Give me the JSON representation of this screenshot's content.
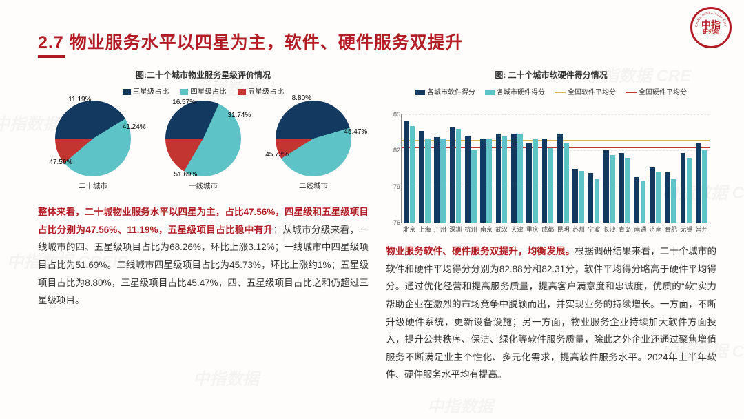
{
  "title": "2.7 物业服务水平以四星为主，软件、硬件服务双提升",
  "logo": {
    "center_text": "中指",
    "sub_text": "研究院",
    "arc_top": "CHINA INDEX ACADEMY",
    "circle_color": "#b31c24"
  },
  "watermarks": [
    "中指数据 CREIS",
    "中指数据",
    "中指数据 CRE",
    "中指数据 CREIS",
    "中指数据",
    "中指数据 CREIS",
    "中指数据",
    "中指数据 CRE",
    "中指数据"
  ],
  "pie_chart": {
    "type": "pie",
    "title": "图:二十个城市物业服务星级评价情况",
    "legend": [
      {
        "label": "三星级占比",
        "color": "#12395f"
      },
      {
        "label": "四星级占比",
        "color": "#5ec3c6"
      },
      {
        "label": "五星级占比",
        "color": "#c23531"
      }
    ],
    "pies": [
      {
        "name": "二十城市",
        "slices": [
          {
            "label": "41.24%",
            "value": 41.24,
            "color": "#12395f"
          },
          {
            "label": "47.56%",
            "value": 47.56,
            "color": "#5ec3c6"
          },
          {
            "label": "11.19%",
            "value": 11.19,
            "color": "#c23531"
          }
        ]
      },
      {
        "name": "一线城市",
        "slices": [
          {
            "label": "31.74%",
            "value": 31.74,
            "color": "#12395f"
          },
          {
            "label": "51.69%",
            "value": 51.69,
            "color": "#5ec3c6"
          },
          {
            "label": "16.57%",
            "value": 16.57,
            "color": "#c23531"
          }
        ]
      },
      {
        "name": "二线城市",
        "slices": [
          {
            "label": "45.47%",
            "value": 45.47,
            "color": "#12395f"
          },
          {
            "label": "45.73%",
            "value": 45.73,
            "color": "#5ec3c6"
          },
          {
            "label": "8.80%",
            "value": 8.8,
            "color": "#c23531"
          }
        ]
      }
    ]
  },
  "bar_chart": {
    "type": "grouped-bar",
    "title": "图:  二十个城市软硬件得分情况",
    "legend": [
      {
        "kind": "bar",
        "label": "各城市软件得分",
        "color": "#12395f"
      },
      {
        "kind": "bar",
        "label": "各城市硬件得分",
        "color": "#5ec3c6"
      },
      {
        "kind": "line",
        "label": "全国软件平均分",
        "color": "#d9b652"
      },
      {
        "kind": "line",
        "label": "全国硬件平均分",
        "color": "#c23531"
      }
    ],
    "ylim": [
      76,
      85
    ],
    "ytick_step": 3,
    "avg_soft": 82.88,
    "avg_hard": 82.31,
    "categories": [
      "北京",
      "上海",
      "广州",
      "深圳",
      "杭州",
      "南京",
      "武汉",
      "天津",
      "重庆",
      "成都",
      "昆明",
      "苏州",
      "宁波",
      "长沙",
      "青岛",
      "南通",
      "济南",
      "合肥",
      "无锡",
      "常州"
    ],
    "soft": [
      84.4,
      83.6,
      83.1,
      83.9,
      83.2,
      83.0,
      83.4,
      83.4,
      82.6,
      83.0,
      83.4,
      80.5,
      80.1,
      82.0,
      81.8,
      79.8,
      80.6,
      80.2,
      81.8,
      82.6
    ],
    "hard": [
      84.0,
      83.0,
      83.0,
      83.8,
      82.0,
      83.0,
      83.2,
      83.4,
      83.0,
      82.2,
      82.6,
      80.3,
      79.6,
      81.6,
      81.4,
      79.5,
      80.2,
      79.6,
      81.4,
      82.0
    ],
    "grid_color": "#e5e5e5",
    "bar_colors": [
      "#12395f",
      "#5ec3c6"
    ]
  },
  "left_text": {
    "hl": "整体来看，二十城物业服务水平以四星为主，占比47.56%，四星级和五星级项目占比分别为47.56%、11.19%，五星级项目占比稳中有升",
    "rest": "；从城市分级来看，一线城市的四、五星级项目占比为68.26%，环比上涨3.12%；一线城市中四星级项目占比为51.69%。二线城市四星级项目占比为45.73%，环比上涨约1%；五星级项目占比为8.80%，三星级项目占比45.47%，四、五星级项目占比之和仍超过三星级项目。"
  },
  "right_text": {
    "hl": "物业服务软件、硬件服务双提升，均衡发展。",
    "rest": "根据调研结果来看，二十个城市的软件和硬件平均得分分别为82.88分和82.31分，软件平均得分略高于硬件平均得分。通过优化经营和提高服务质量，提高客户满意度和忠诚度，优质的“软”实力帮助企业在激烈的市场竞争中脱颖而出，并实现业务的持续增长。一方面，不断升级硬件系统，更新设备设施；另一方面，物业服务企业持续加大软件方面投入，提升公共秩序、保洁、绿化等软件服务质量，除此之外企业还通过聚焦增值服务不断满足业主个性化、多元化需求，提高软件服务水平。2024年上半年软件、硬件服务水平均有提高。"
  }
}
